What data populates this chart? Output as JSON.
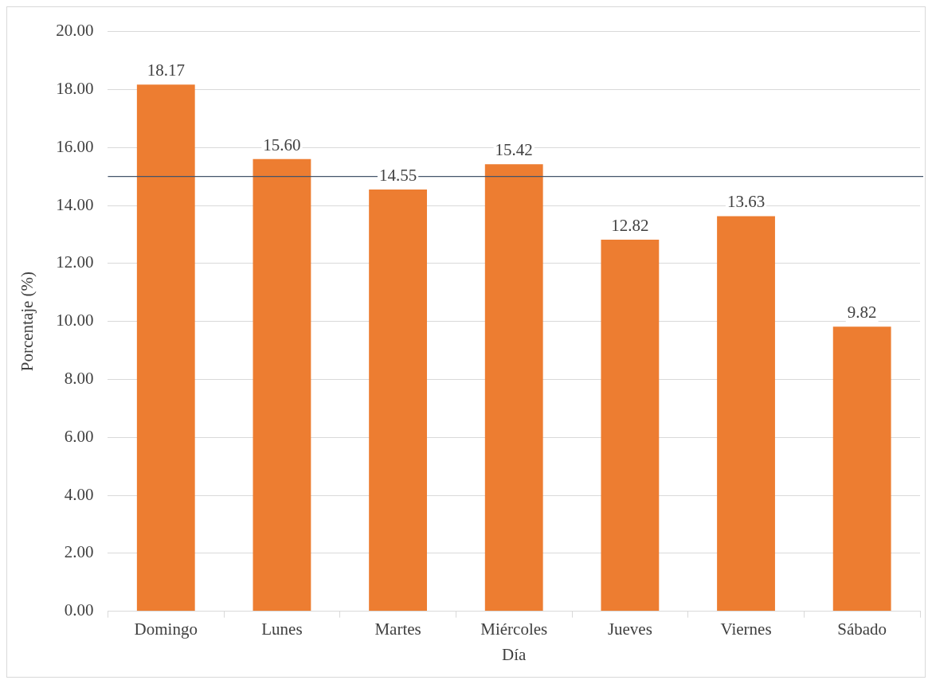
{
  "chart_data": {
    "type": "bar",
    "xlabel": "Día",
    "ylabel": "Porcentaje (%)",
    "categories": [
      "Domingo",
      "Lunes",
      "Martes",
      "Miércoles",
      "Jueves",
      "Viernes",
      "Sábado"
    ],
    "values": [
      18.17,
      15.6,
      14.55,
      15.42,
      12.82,
      13.63,
      9.82
    ],
    "value_labels": [
      "18.17",
      "15.60",
      "14.55",
      "15.42",
      "12.82",
      "13.63",
      "9.82"
    ],
    "color": "#ed7d31",
    "ylim": [
      0,
      20
    ],
    "yticks": [
      {
        "value": 0,
        "label": "0.00"
      },
      {
        "value": 2,
        "label": "2.00"
      },
      {
        "value": 4,
        "label": "4.00"
      },
      {
        "value": 6,
        "label": "6.00"
      },
      {
        "value": 8,
        "label": "8.00"
      },
      {
        "value": 10,
        "label": "10.00"
      },
      {
        "value": 12,
        "label": "12.00"
      },
      {
        "value": 14,
        "label": "14.00"
      },
      {
        "value": 16,
        "label": "16.00"
      },
      {
        "value": 18,
        "label": "18.00"
      },
      {
        "value": 20,
        "label": "20.00"
      }
    ],
    "ref_lines": [
      {
        "axis": "y",
        "value": 15,
        "color": "#44546a"
      }
    ],
    "grid": "y",
    "legend": false
  }
}
